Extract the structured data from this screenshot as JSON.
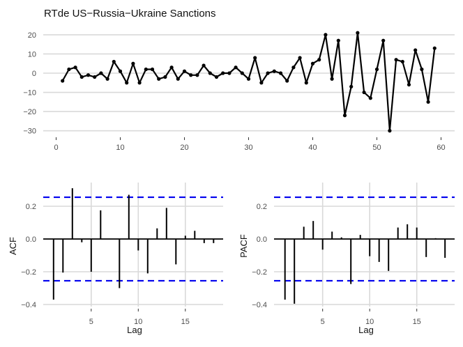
{
  "chart_data": [
    {
      "type": "line",
      "title": "RTde US−Russia−Ukraine Sanctions",
      "xlabel": "",
      "ylabel": "",
      "xlim": [
        0,
        60
      ],
      "ylim": [
        -30,
        20
      ],
      "xticks": [
        "0",
        "10",
        "20",
        "30",
        "40",
        "50",
        "60"
      ],
      "yticks": [
        "20",
        "10",
        "0",
        "−10",
        "−20",
        "−30"
      ],
      "grid": true,
      "series": [
        {
          "x": [
            1,
            2,
            3,
            4,
            5,
            6,
            7,
            8,
            9,
            10,
            11,
            12,
            13,
            14,
            15,
            16,
            17,
            18,
            19,
            20,
            21,
            22,
            23,
            24,
            25,
            26,
            27,
            28,
            29,
            30,
            31,
            32,
            33,
            34,
            35,
            36,
            37,
            38,
            39,
            40,
            41,
            42,
            43,
            44,
            45,
            46,
            47,
            48,
            49,
            50,
            51,
            52,
            53,
            54,
            55,
            56,
            57,
            58,
            59
          ],
          "y": [
            -4,
            2,
            3,
            -2,
            -1,
            -2,
            0,
            -3,
            6,
            1,
            -5,
            5,
            -5,
            2,
            2,
            -3,
            -2,
            3,
            -3,
            1,
            -1,
            -1,
            4,
            0,
            -2,
            0,
            0,
            3,
            0,
            -3,
            8,
            -5,
            0,
            1,
            0,
            -4,
            3,
            8,
            -5,
            5,
            7,
            20,
            -3,
            17,
            -22,
            -7,
            21,
            -10,
            -13,
            2,
            17,
            -30,
            7,
            6,
            -6,
            12,
            2,
            -15,
            13
          ]
        }
      ]
    },
    {
      "type": "bar",
      "title": "",
      "xlabel": "Lag",
      "ylabel": "ACF",
      "xlim": [
        0.4,
        18.6
      ],
      "ylim": [
        -0.4,
        0.3
      ],
      "xticks": [
        "5",
        "10",
        "15"
      ],
      "yticks": [
        "0.2",
        "0.0",
        "−0.2",
        "−0.4"
      ],
      "confidence_band": 0.255,
      "grid": true,
      "lags": [
        1,
        2,
        3,
        4,
        5,
        6,
        7,
        8,
        9,
        10,
        11,
        12,
        13,
        14,
        15,
        16,
        17,
        18
      ],
      "values": [
        -0.37,
        -0.205,
        0.31,
        -0.02,
        -0.2,
        0.175,
        0.0,
        -0.3,
        0.27,
        -0.07,
        -0.21,
        0.065,
        0.19,
        -0.155,
        0.02,
        0.05,
        -0.025,
        -0.025
      ]
    },
    {
      "type": "bar",
      "title": "",
      "xlabel": "Lag",
      "ylabel": "PACF",
      "xlim": [
        0.4,
        18.6
      ],
      "ylim": [
        -0.4,
        0.3
      ],
      "xticks": [
        "5",
        "10",
        "15"
      ],
      "yticks": [
        "0.2",
        "0.0",
        "−0.2",
        "−0.4"
      ],
      "confidence_band": 0.255,
      "grid": true,
      "lags": [
        1,
        2,
        3,
        4,
        5,
        6,
        7,
        8,
        9,
        10,
        11,
        12,
        13,
        14,
        15,
        16,
        17,
        18
      ],
      "values": [
        -0.37,
        -0.395,
        0.075,
        0.11,
        -0.065,
        0.045,
        0.01,
        -0.275,
        0.025,
        -0.105,
        -0.14,
        -0.195,
        0.07,
        0.09,
        0.07,
        -0.11,
        0.005,
        -0.115
      ]
    }
  ],
  "colors": {
    "line": "#000000",
    "confidence": "#0000ee",
    "grid": "#d9d9d9"
  }
}
